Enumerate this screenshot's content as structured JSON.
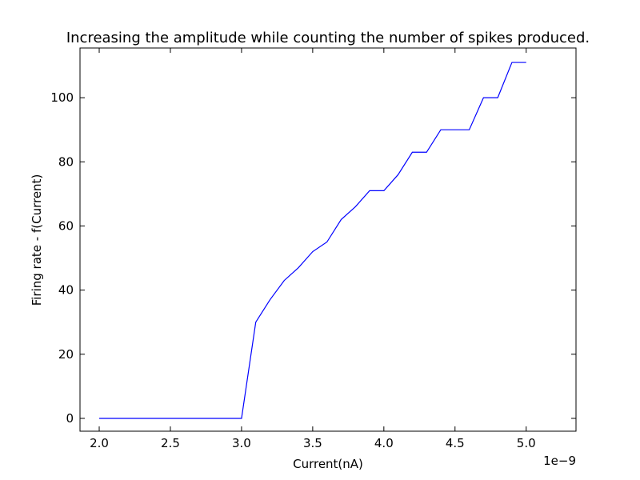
{
  "chart_data": {
    "type": "line",
    "title": "Increasing the amplitude while counting the number of spikes produced.",
    "xlabel": "Current(nA)",
    "ylabel": "Firing rate - f(Current)",
    "x_offset_label": "1e−9",
    "xlim": [
      1.865,
      5.35
    ],
    "ylim": [
      -4,
      115.5
    ],
    "xticks": [
      2.0,
      2.5,
      3.0,
      3.5,
      4.0,
      4.5,
      5.0
    ],
    "xtick_labels": [
      "2.0",
      "2.5",
      "3.0",
      "3.5",
      "4.0",
      "4.5",
      "5.0"
    ],
    "yticks": [
      0,
      20,
      40,
      60,
      80,
      100
    ],
    "ytick_labels": [
      "0",
      "20",
      "40",
      "60",
      "80",
      "100"
    ],
    "grid": false,
    "series": [
      {
        "name": "firing rate",
        "color": "#0000ff",
        "x": [
          2.0,
          2.1,
          2.2,
          2.3,
          2.4,
          2.5,
          2.6,
          2.7,
          2.8,
          2.9,
          3.0,
          3.1,
          3.2,
          3.3,
          3.4,
          3.5,
          3.6,
          3.7,
          3.8,
          3.9,
          4.0,
          4.1,
          4.2,
          4.3,
          4.4,
          4.5,
          4.6,
          4.7,
          4.8,
          4.9,
          5.0
        ],
        "values": [
          0,
          0,
          0,
          0,
          0,
          0,
          0,
          0,
          0,
          0,
          0,
          30,
          37,
          43,
          47,
          52,
          55,
          62,
          66,
          71,
          71,
          76,
          83,
          83,
          90,
          90,
          90,
          100,
          100,
          111,
          111
        ]
      }
    ]
  }
}
